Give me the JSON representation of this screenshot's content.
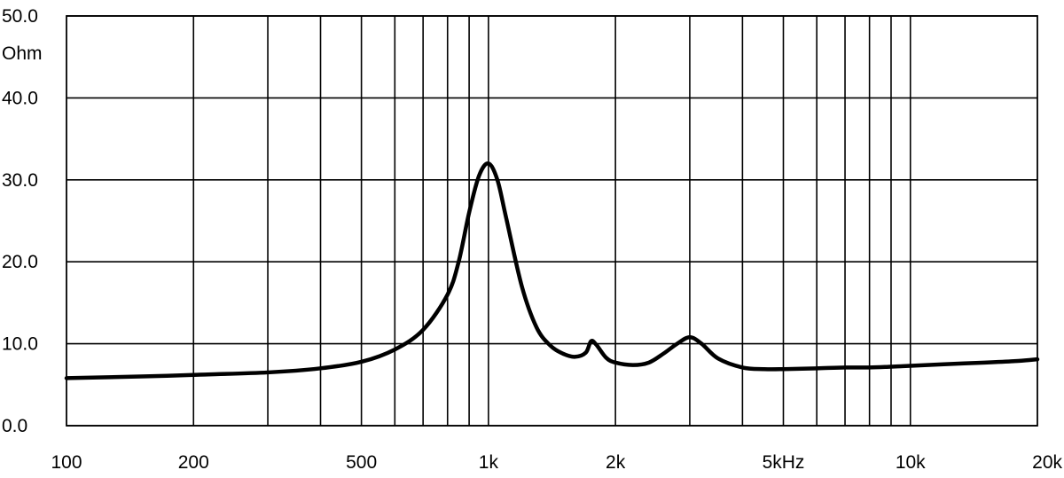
{
  "chart_data": {
    "type": "line",
    "title": "",
    "xlabel": "",
    "ylabel": "Ohm",
    "x_scale": "log",
    "xlim": [
      100,
      20000
    ],
    "ylim": [
      0,
      50
    ],
    "grid": true,
    "legend": "none",
    "line_color": "#000000",
    "y_ticks": [
      {
        "value": 0,
        "label": "0.0"
      },
      {
        "value": 10,
        "label": "10.0"
      },
      {
        "value": 20,
        "label": "20.0"
      },
      {
        "value": 30,
        "label": "30.0"
      },
      {
        "value": 40,
        "label": "40.0"
      },
      {
        "value": 50,
        "label": "50.0"
      }
    ],
    "x_ticks": [
      {
        "value": 100,
        "label": "100"
      },
      {
        "value": 200,
        "label": "200"
      },
      {
        "value": 500,
        "label": "500"
      },
      {
        "value": 1000,
        "label": "1k"
      },
      {
        "value": 2000,
        "label": "2k"
      },
      {
        "value": 5000,
        "label": "5kHz"
      },
      {
        "value": 10000,
        "label": "10k"
      },
      {
        "value": 20000,
        "label": "20k"
      }
    ],
    "x_gridlines": [
      200,
      300,
      400,
      500,
      600,
      700,
      800,
      900,
      1000,
      2000,
      3000,
      4000,
      5000,
      6000,
      7000,
      8000,
      9000,
      10000
    ],
    "series": [
      {
        "name": "",
        "x": [
          100,
          150,
          200,
          300,
          400,
          500,
          600,
          700,
          800,
          850,
          900,
          950,
          1000,
          1050,
          1100,
          1200,
          1300,
          1400,
          1500,
          1600,
          1700,
          1750,
          1800,
          1900,
          2000,
          2200,
          2400,
          2600,
          2800,
          3000,
          3200,
          3500,
          4000,
          4500,
          5000,
          6000,
          7000,
          8000,
          9000,
          10000,
          12000,
          15000,
          18000,
          20000
        ],
        "y": [
          5.8,
          6.0,
          6.2,
          6.5,
          7.0,
          7.8,
          9.3,
          11.7,
          16.0,
          20.0,
          26.0,
          30.5,
          32.0,
          30.0,
          25.5,
          17.0,
          12.0,
          9.8,
          8.8,
          8.4,
          8.9,
          10.3,
          9.9,
          8.3,
          7.7,
          7.4,
          7.7,
          8.8,
          10.0,
          10.8,
          10.0,
          8.2,
          7.1,
          6.9,
          6.9,
          7.0,
          7.1,
          7.1,
          7.2,
          7.3,
          7.5,
          7.7,
          7.9,
          8.1
        ]
      }
    ]
  }
}
